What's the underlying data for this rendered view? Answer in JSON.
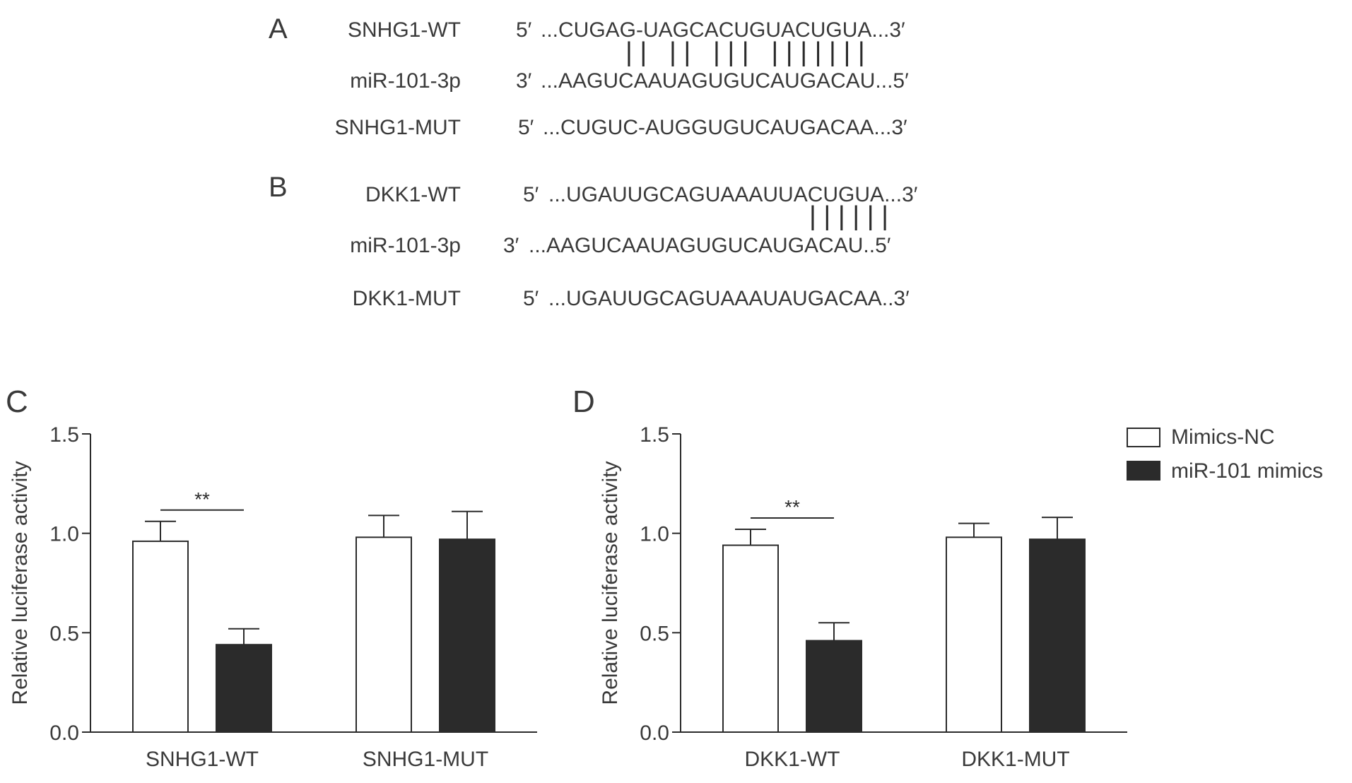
{
  "panels": {
    "A": {
      "letter": "A",
      "rows": [
        {
          "label": "SNHG1-WT",
          "prefix": "5′",
          "seq": "...CUGAG-UAGCACUGUACUGUA...3′"
        },
        {
          "label": "miR-101-3p",
          "prefix": "3′",
          "seq": "...AAGUCAAUAGUGUCAUGACAU...5′"
        },
        {
          "label": "SNHG1-MUT",
          "prefix": "5′",
          "seq": "...CUGUC-AUGGUGUCAUGACAA...3′"
        }
      ],
      "pairing_marks": "| |   | |   | | |   | | | | | | |"
    },
    "B": {
      "letter": "B",
      "rows": [
        {
          "label": "DKK1-WT",
          "prefix": "5′",
          "seq": "...UGAUUGCAGUAAAUUACUGUA...3′"
        },
        {
          "label": "miR-101-3p",
          "prefix": "3′",
          "seq": "...AAGUCAAUAGUGUCAUGACAU..5′"
        },
        {
          "label": "DKK1-MUT",
          "prefix": "5′",
          "seq": "...UGAUUGCAGUAAAUAUGACAA..3′"
        }
      ],
      "pairing_marks": "| | | | | |"
    }
  },
  "legend": [
    {
      "name": "Mimics-NC",
      "fill": "#ffffff"
    },
    {
      "name": "miR-101 mimics",
      "fill": "#2b2b2b"
    }
  ],
  "chart_data": [
    {
      "panel": "C",
      "type": "bar",
      "categories": [
        "SNHG1-WT",
        "SNHG1-MUT"
      ],
      "series": [
        {
          "name": "Mimics-NC",
          "values": [
            0.96,
            0.98
          ],
          "errors": [
            0.1,
            0.11
          ],
          "color": "#ffffff"
        },
        {
          "name": "miR-101 mimics",
          "values": [
            0.44,
            0.97
          ],
          "errors": [
            0.08,
            0.14
          ],
          "color": "#2b2b2b"
        }
      ],
      "ylabel": "Relative luciferase activity",
      "ylim": [
        0,
        1.5
      ],
      "yticks": [
        "0.0",
        "0.5",
        "1.0",
        "1.5"
      ],
      "significance": [
        {
          "category": "SNHG1-WT",
          "label": "**"
        }
      ]
    },
    {
      "panel": "D",
      "type": "bar",
      "categories": [
        "DKK1-WT",
        "DKK1-MUT"
      ],
      "series": [
        {
          "name": "Mimics-NC",
          "values": [
            0.94,
            0.98
          ],
          "errors": [
            0.08,
            0.07
          ],
          "color": "#ffffff"
        },
        {
          "name": "miR-101 mimics",
          "values": [
            0.46,
            0.97
          ],
          "errors": [
            0.09,
            0.11
          ],
          "color": "#2b2b2b"
        }
      ],
      "ylabel": "Relative luciferase activity",
      "ylim": [
        0,
        1.5
      ],
      "yticks": [
        "0.0",
        "0.5",
        "1.0",
        "1.5"
      ],
      "significance": [
        {
          "category": "DKK1-WT",
          "label": "**"
        }
      ]
    }
  ]
}
